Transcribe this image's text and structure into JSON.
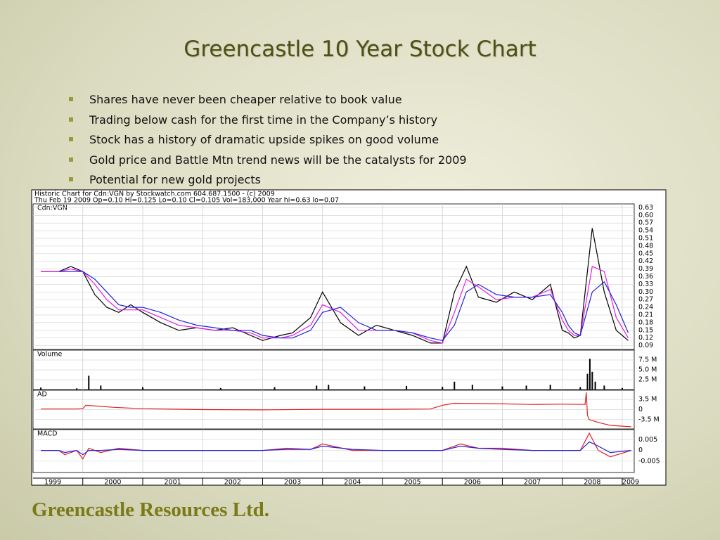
{
  "title": "Greencastle 10 Year Stock Chart",
  "bullets": [
    "Shares have never been cheaper relative to book value",
    "Trading below cash for the first time in the Company’s history",
    "Stock has a history of dramatic upside spikes on good volume",
    "Gold price and Battle Mtn trend news will be the catalysts for 2009",
    "Potential for new gold projects"
  ],
  "footer": "Greencastle Resources Ltd.",
  "chart_data": [
    {
      "type": "line",
      "title": "Historic Chart for Cdn:VGN by Stockwatch.com 604.687.1500 - (c) 2009",
      "subtitle": "Thu Feb 19 2009  Op=0.10  Hi=0.125  Lo=0.10  Cl=0.105  Vol=183,000  Year hi=0.63  lo=0.07",
      "label": "Cdn:VGN",
      "grid": true,
      "xlim": [
        1999.17,
        2009.2
      ],
      "xticks": [
        1999,
        2000,
        2001,
        2002,
        2003,
        2004,
        2005,
        2006,
        2007,
        2008,
        2009
      ],
      "ylim": [
        0.075,
        0.645
      ],
      "yticks": [
        0.09,
        0.12,
        0.15,
        0.18,
        0.21,
        0.24,
        0.27,
        {
          "value": 0.3,
          "label": "0.30"
        },
        0.33,
        0.36,
        0.39,
        0.42,
        0.45,
        0.48,
        0.51,
        0.54,
        0.57,
        {
          "value": 0.6,
          "label": "0.60"
        },
        0.63
      ],
      "x": [
        1999.3,
        1999.4,
        1999.5,
        1999.6,
        1999.8,
        2000.0,
        2000.2,
        2000.4,
        2000.6,
        2000.8,
        2001.0,
        2001.3,
        2001.6,
        2001.9,
        2002.2,
        2002.5,
        2002.8,
        2003.0,
        2003.3,
        2003.5,
        2003.8,
        2004.0,
        2004.3,
        2004.6,
        2004.9,
        2005.2,
        2005.5,
        2005.8,
        2006.0,
        2006.2,
        2006.4,
        2006.6,
        2006.9,
        2007.2,
        2007.5,
        2007.8,
        2008.0,
        2008.1,
        2008.2,
        2008.3,
        2008.5,
        2008.7,
        2008.9,
        2009.1
      ],
      "series": [
        {
          "color": "#000000",
          "values": [
            0.38,
            0.38,
            0.38,
            0.38,
            0.4,
            0.38,
            0.29,
            0.24,
            0.22,
            0.25,
            0.22,
            0.18,
            0.15,
            0.16,
            0.15,
            0.16,
            0.13,
            0.11,
            0.13,
            0.14,
            0.2,
            0.3,
            0.18,
            0.13,
            0.17,
            0.15,
            0.13,
            0.1,
            0.1,
            0.3,
            0.4,
            0.28,
            0.26,
            0.3,
            0.27,
            0.33,
            0.15,
            0.14,
            0.12,
            0.13,
            0.55,
            0.3,
            0.15,
            0.11
          ]
        },
        {
          "color": "#e020e0",
          "values": [
            0.38,
            0.38,
            0.38,
            0.38,
            0.39,
            0.38,
            0.33,
            0.27,
            0.23,
            0.23,
            0.23,
            0.2,
            0.17,
            0.16,
            0.15,
            0.15,
            0.14,
            0.12,
            0.12,
            0.13,
            0.17,
            0.25,
            0.22,
            0.15,
            0.15,
            0.15,
            0.14,
            0.11,
            0.1,
            0.22,
            0.35,
            0.32,
            0.27,
            0.28,
            0.28,
            0.31,
            0.19,
            0.15,
            0.13,
            0.13,
            0.4,
            0.38,
            0.2,
            0.12
          ]
        },
        {
          "color": "#2020e0",
          "values": [
            null,
            null,
            null,
            0.38,
            0.38,
            0.38,
            0.35,
            0.3,
            0.25,
            0.24,
            0.24,
            0.22,
            0.19,
            0.17,
            0.16,
            0.15,
            0.15,
            0.13,
            0.12,
            0.12,
            0.15,
            0.22,
            0.24,
            0.18,
            0.15,
            0.15,
            0.14,
            0.12,
            0.11,
            0.17,
            0.3,
            0.33,
            0.29,
            0.28,
            0.28,
            0.29,
            0.22,
            0.17,
            0.14,
            0.13,
            0.3,
            0.34,
            0.25,
            0.14
          ]
        }
      ]
    },
    {
      "type": "bar",
      "label": "Volume",
      "color": "#000000",
      "ylim": [
        0,
        10
      ],
      "yticks": [
        {
          "value": 2.5,
          "label": "2.5 M"
        },
        {
          "value": 5.0,
          "label": "5.0 M"
        },
        {
          "value": 7.5,
          "label": "7.5 M"
        }
      ],
      "x": [
        1999.3,
        1999.9,
        2000.1,
        2000.3,
        2001.0,
        2002.3,
        2003.2,
        2003.9,
        2004.1,
        2004.7,
        2005.4,
        2006.0,
        2006.2,
        2006.5,
        2007.0,
        2007.4,
        2007.8,
        2008.3,
        2008.42,
        2008.46,
        2008.5,
        2008.55,
        2008.7,
        2009.0
      ],
      "values": [
        0.5,
        0.3,
        3.5,
        1.0,
        0.6,
        0.4,
        0.6,
        1.0,
        1.2,
        0.8,
        0.9,
        0.7,
        2.0,
        1.2,
        0.8,
        1.0,
        1.2,
        0.6,
        4.0,
        7.8,
        4.5,
        2.0,
        1.0,
        0.4
      ]
    },
    {
      "type": "line",
      "label": "AD",
      "ylim": [
        -6.75,
        6.75
      ],
      "yticks": [
        {
          "value": 3.5,
          "label": "3.5 M"
        },
        0,
        {
          "value": -3.5,
          "label": "-3.5 M"
        }
      ],
      "x": [
        1999.3,
        1999.9,
        2000.0,
        2000.05,
        2000.5,
        2001.0,
        2002.0,
        2003.0,
        2004.0,
        2005.0,
        2005.8,
        2006.0,
        2006.2,
        2007.0,
        2007.5,
        2008.0,
        2008.38,
        2008.4,
        2008.42,
        2008.45,
        2008.6,
        2008.8,
        2009.0,
        2009.15
      ],
      "series": [
        {
          "color": "#e02020",
          "values": [
            0.2,
            0.2,
            0.3,
            1.5,
            0.8,
            0.3,
            0,
            -0.1,
            0.1,
            0.1,
            0.2,
            1.5,
            2.2,
            2.0,
            1.8,
            1.9,
            1.8,
            6,
            -2,
            -3.5,
            -4.5,
            -5.5,
            -5.8,
            -6
          ]
        }
      ]
    },
    {
      "type": "line",
      "label": "MACD",
      "ylim": [
        -0.0103,
        0.0097
      ],
      "yticks": [
        0.005,
        0,
        -0.005
      ],
      "x": [
        1999.3,
        1999.6,
        1999.7,
        1999.9,
        2000.0,
        2000.1,
        2000.3,
        2000.6,
        2001.0,
        2001.5,
        2002.0,
        2002.5,
        2003.0,
        2003.4,
        2003.8,
        2004.0,
        2004.5,
        2005.0,
        2005.5,
        2006.0,
        2006.3,
        2006.6,
        2007.0,
        2007.5,
        2008.0,
        2008.3,
        2008.45,
        2008.6,
        2008.8,
        2009.15
      ],
      "series": [
        {
          "color": "#e02020",
          "values": [
            0,
            0,
            -0.002,
            0,
            -0.004,
            0.001,
            -0.001,
            0.001,
            0,
            0,
            0,
            0,
            0,
            0.001,
            0.0005,
            0.003,
            0,
            0,
            0,
            0,
            0.003,
            0.001,
            0.001,
            0,
            0,
            0,
            0.008,
            0,
            -0.003,
            0
          ]
        },
        {
          "color": "#2020e0",
          "values": [
            0,
            0,
            -0.001,
            0,
            -0.002,
            0,
            0,
            0.0005,
            0,
            0,
            0,
            0,
            0,
            0.0005,
            0.0005,
            0.002,
            0.0005,
            0,
            0,
            0,
            0.002,
            0.001,
            0.0005,
            0,
            0,
            0,
            0.004,
            0.002,
            -0.001,
            0
          ]
        }
      ]
    }
  ]
}
